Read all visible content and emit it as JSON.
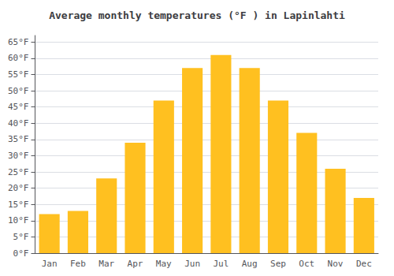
{
  "chart_data": {
    "type": "bar",
    "title": "Average monthly temperatures (°F ) in Lapinlahti",
    "categories": [
      "Jan",
      "Feb",
      "Mar",
      "Apr",
      "May",
      "Jun",
      "Jul",
      "Aug",
      "Sep",
      "Oct",
      "Nov",
      "Dec"
    ],
    "values": [
      12,
      13,
      23,
      34,
      47,
      57,
      61,
      57,
      47,
      37,
      26,
      17
    ],
    "color": "#FFC020",
    "ylim": [
      0,
      67
    ],
    "yticks": [
      {
        "value": 0,
        "label": "0°F"
      },
      {
        "value": 5,
        "label": "5°F"
      },
      {
        "value": 10,
        "label": "10°F"
      },
      {
        "value": 15,
        "label": "15°F"
      },
      {
        "value": 20,
        "label": "20°F"
      },
      {
        "value": 25,
        "label": "25°F"
      },
      {
        "value": 30,
        "label": "30°F"
      },
      {
        "value": 35,
        "label": "35°F"
      },
      {
        "value": 40,
        "label": "40°F"
      },
      {
        "value": 45,
        "label": "45°F"
      },
      {
        "value": 50,
        "label": "50°F"
      },
      {
        "value": 55,
        "label": "55°F"
      },
      {
        "value": 60,
        "label": "60°F"
      },
      {
        "value": 65,
        "label": "65°F"
      }
    ],
    "grid": true
  }
}
